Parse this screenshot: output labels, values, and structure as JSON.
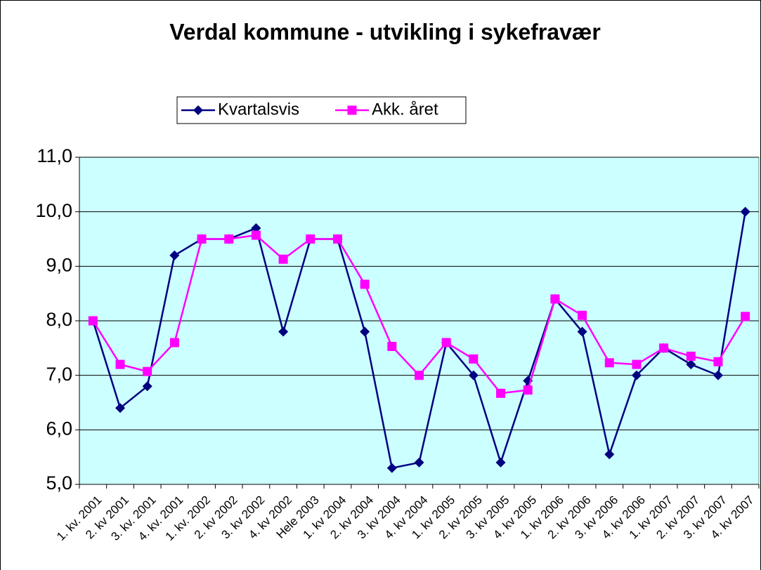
{
  "chart_data": {
    "type": "line",
    "title": "Verdal kommune - utvikling i sykefravær",
    "categories": [
      "1. kv. 2001",
      "2. kv 2001",
      "3. kv. 2001",
      "4. kv. 2001",
      "1. kv. 2002",
      "2. kv 2002",
      "3. kv 2002",
      "4. kv 2002",
      "Hele 2003",
      "1. kv 2004",
      "2. kv 2004",
      "3. kv 2004",
      "4. kv 2004",
      "1. kv 2005",
      "2. kv 2005",
      "3. kv 2005",
      "4. kv 2005",
      "1. kv 2006",
      "2. kv 2006",
      "3. kv 2006",
      "4. kv 2006",
      "1. kv 2007",
      "2. kv 2007",
      "3. kv 2007",
      "4. kv 2007"
    ],
    "series": [
      {
        "name": "Kvartalsvis",
        "color": "#000080",
        "marker": "diamond",
        "values": [
          8.0,
          6.4,
          6.8,
          9.2,
          9.5,
          9.5,
          9.7,
          7.8,
          9.5,
          9.5,
          7.8,
          5.3,
          5.4,
          7.6,
          7.0,
          5.4,
          6.9,
          8.4,
          7.8,
          5.55,
          7.0,
          7.5,
          7.2,
          7.0,
          10.0
        ]
      },
      {
        "name": "Akk. året",
        "color": "#ff00ff",
        "marker": "square",
        "values": [
          8.0,
          7.2,
          7.07,
          7.6,
          9.5,
          9.5,
          9.57,
          9.13,
          9.5,
          9.5,
          8.67,
          7.53,
          7.0,
          7.6,
          7.3,
          6.67,
          6.73,
          8.4,
          8.1,
          7.23,
          7.2,
          7.5,
          7.35,
          7.25,
          8.08
        ]
      }
    ],
    "ylim": [
      5,
      11
    ],
    "yticks": [
      {
        "value": 5,
        "label": "5,0"
      },
      {
        "value": 6,
        "label": "6,0"
      },
      {
        "value": 7,
        "label": "7,0"
      },
      {
        "value": 8,
        "label": "8,0"
      },
      {
        "value": 9,
        "label": "9,0"
      },
      {
        "value": 10,
        "label": "10,0"
      },
      {
        "value": 11,
        "label": "11,0"
      }
    ],
    "grid": true,
    "plot_background": "#ccffff",
    "legend": "top"
  }
}
